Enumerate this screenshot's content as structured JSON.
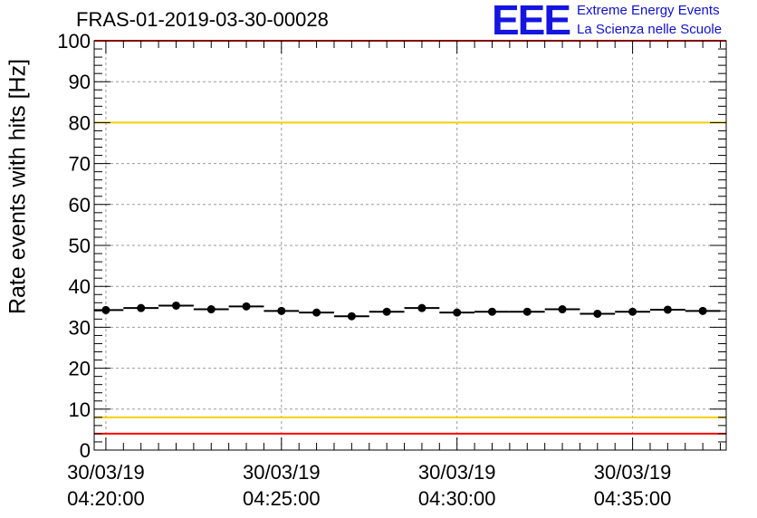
{
  "chart_data": {
    "type": "scatter",
    "title": "FRAS-01-2019-03-30-00028",
    "ylabel": "Rate events with hits [Hz]",
    "xlabel": "",
    "ylim": [
      0,
      100
    ],
    "yticks": [
      0,
      10,
      20,
      30,
      40,
      50,
      60,
      70,
      80,
      90,
      100
    ],
    "xlim_seconds": [
      -20,
      1060
    ],
    "xticks": [
      {
        "seconds": 0,
        "date": "30/03/19",
        "time": "04:20:00"
      },
      {
        "seconds": 300,
        "date": "30/03/19",
        "time": "04:25:00"
      },
      {
        "seconds": 600,
        "date": "30/03/19",
        "time": "04:30:00"
      },
      {
        "seconds": 900,
        "date": "30/03/19",
        "time": "04:35:00"
      }
    ],
    "grid": true,
    "bin_width_seconds": 60,
    "x": [
      0,
      60,
      120,
      180,
      240,
      300,
      360,
      420,
      480,
      540,
      600,
      660,
      720,
      780,
      840,
      900,
      960,
      1020
    ],
    "values": [
      34.2,
      34.7,
      35.3,
      34.4,
      35.1,
      34.0,
      33.6,
      32.7,
      33.8,
      34.7,
      33.6,
      33.8,
      33.8,
      34.4,
      33.3,
      33.8,
      34.3,
      34.0
    ],
    "reference_lines": [
      {
        "value": 100,
        "color": "#ff0000"
      },
      {
        "value": 80,
        "color": "#f5d000"
      },
      {
        "value": 8,
        "color": "#f5d000"
      },
      {
        "value": 4,
        "color": "#ff0000"
      }
    ],
    "marker_color": "#000000"
  },
  "logo": {
    "mark": "EEE",
    "line1": "Extreme Energy Events",
    "line2": "La Scienza nelle Scuole"
  }
}
